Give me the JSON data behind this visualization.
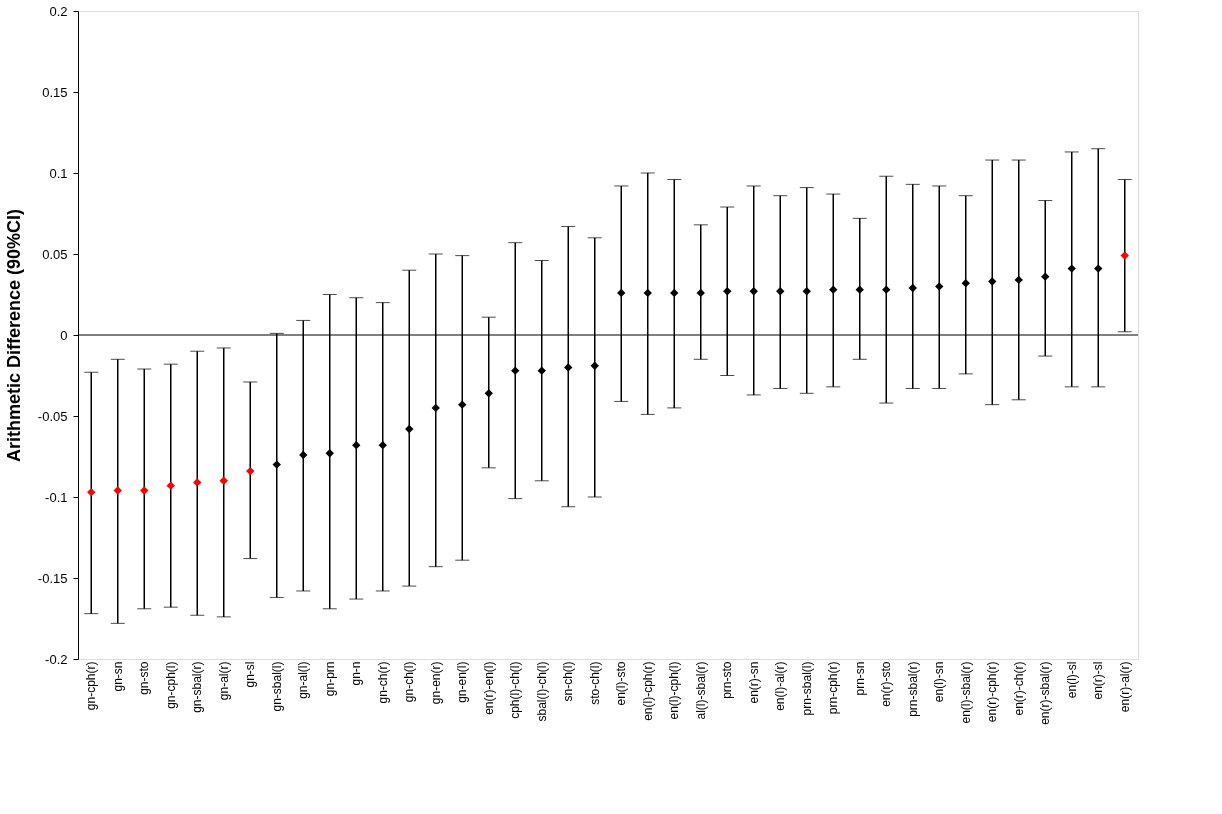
{
  "chart_data": {
    "type": "scatter",
    "ylabel": "Arithmetic Difference (90%CI)",
    "categories": [
      "gn-cph(r)",
      "gn-sn",
      "gn-sto",
      "gn-cph(l)",
      "gn-sbal(r)",
      "gn-al(r)",
      "gn-sl",
      "gn-sbal(l)",
      "gn-al(l)",
      "gn-prn",
      "gn-n",
      "gn-ch(r)",
      "gn-ch(l)",
      "gn-en(r)",
      "gn-en(l)",
      "en(r)-en(l)",
      "cph(l)-ch(l)",
      "sbal(l)-ch(l)",
      "sn-ch(l)",
      "sto-ch(l)",
      "en(l)-sto",
      "en(l)-cph(r)",
      "en(l)-cph(l)",
      "al(l)-sbal(r)",
      "prn-sto",
      "en(r)-sn",
      "en(l)-al(r)",
      "prn-sbal(l)",
      "prn-cph(r)",
      "prn-sn",
      "en(r)-sto",
      "prn-sbal(r)",
      "en(l)-sn",
      "en(l)-sbal(r)",
      "en(r)-cph(r)",
      "en(r)-ch(r)",
      "en(r)-sbal(r)",
      "en(l)-sl",
      "en(r)-sl",
      "en(r)-al(r)"
    ],
    "series": [
      {
        "colors": [
          "#ff0000",
          "#ff0000",
          "#ff0000",
          "#ff0000",
          "#ff0000",
          "#ff0000",
          "#ff0000",
          "#000000",
          "#000000",
          "#000000",
          "#000000",
          "#000000",
          "#000000",
          "#000000",
          "#000000",
          "#000000",
          "#000000",
          "#000000",
          "#000000",
          "#000000",
          "#000000",
          "#000000",
          "#000000",
          "#000000",
          "#000000",
          "#000000",
          "#000000",
          "#000000",
          "#000000",
          "#000000",
          "#000000",
          "#000000",
          "#000000",
          "#000000",
          "#000000",
          "#000000",
          "#000000",
          "#000000",
          "#000000",
          "#ff0000"
        ],
        "values": [
          -0.097,
          -0.096,
          -0.096,
          -0.093,
          -0.091,
          -0.09,
          -0.084,
          -0.08,
          -0.074,
          -0.073,
          -0.068,
          -0.068,
          -0.058,
          -0.045,
          -0.043,
          -0.036,
          -0.022,
          -0.022,
          -0.02,
          -0.019,
          0.026,
          0.026,
          0.026,
          0.026,
          0.027,
          0.027,
          0.027,
          0.027,
          0.028,
          0.028,
          0.028,
          0.029,
          0.03,
          0.032,
          0.033,
          0.034,
          0.036,
          0.041,
          0.041,
          0.049
        ],
        "errors": [
          [
            -0.172,
            -0.023
          ],
          [
            -0.178,
            -0.015
          ],
          [
            -0.169,
            -0.021
          ],
          [
            -0.168,
            -0.018
          ],
          [
            -0.173,
            -0.01
          ],
          [
            -0.174,
            -0.008
          ],
          [
            -0.138,
            -0.029
          ],
          [
            -0.162,
            0.001
          ],
          [
            -0.158,
            0.009
          ],
          [
            -0.169,
            0.025
          ],
          [
            -0.163,
            0.023
          ],
          [
            -0.158,
            0.02
          ],
          [
            -0.155,
            0.04
          ],
          [
            -0.143,
            0.05
          ],
          [
            -0.139,
            0.049
          ],
          [
            -0.082,
            0.011
          ],
          [
            -0.101,
            0.057
          ],
          [
            -0.09,
            0.046
          ],
          [
            -0.106,
            0.067
          ],
          [
            -0.1,
            0.06
          ],
          [
            -0.041,
            0.092
          ],
          [
            -0.049,
            0.1
          ],
          [
            -0.045,
            0.096
          ],
          [
            -0.015,
            0.068
          ],
          [
            -0.025,
            0.079
          ],
          [
            -0.037,
            0.092
          ],
          [
            -0.033,
            0.086
          ],
          [
            -0.036,
            0.091
          ],
          [
            -0.032,
            0.087
          ],
          [
            -0.015,
            0.072
          ],
          [
            -0.042,
            0.098
          ],
          [
            -0.033,
            0.093
          ],
          [
            -0.033,
            0.092
          ],
          [
            -0.024,
            0.086
          ],
          [
            -0.043,
            0.108
          ],
          [
            -0.04,
            0.108
          ],
          [
            -0.013,
            0.083
          ],
          [
            -0.032,
            0.113
          ],
          [
            -0.032,
            0.115
          ],
          [
            0.002,
            0.096
          ]
        ]
      }
    ],
    "ylim": [
      -0.2,
      0.2
    ],
    "yticks": [
      -0.2,
      -0.15,
      -0.1,
      -0.05,
      0,
      0.05,
      0.1,
      0.15,
      0.2
    ],
    "ref_lines": [
      {
        "axis": "y",
        "value": 0,
        "color": "#000000"
      }
    ],
    "grid": false,
    "marker": "diamond"
  }
}
